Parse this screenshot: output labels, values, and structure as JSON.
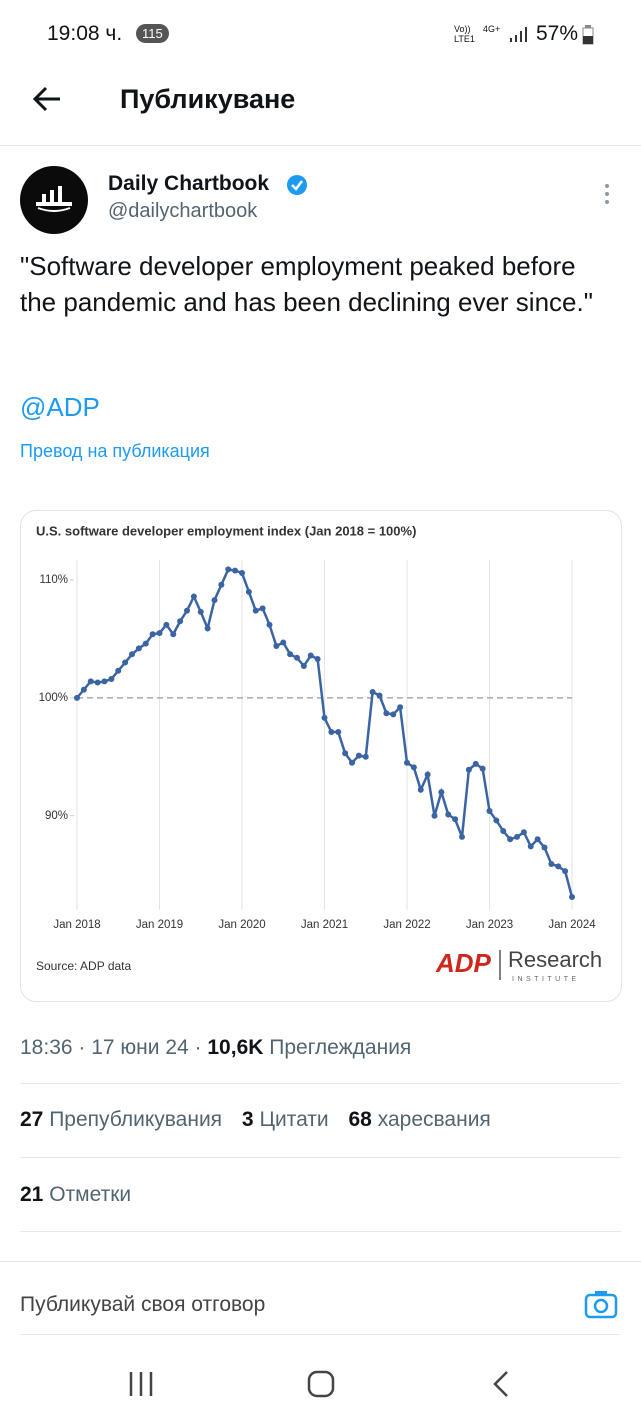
{
  "status_bar": {
    "time": "19:08 ч.",
    "badge": "115",
    "network": "Vo)) LTE1",
    "network_type": "4G+",
    "battery": "57%"
  },
  "header": {
    "title": "Публикуване"
  },
  "post": {
    "author": "Daily Chartbook",
    "handle": "@dailychartbook",
    "text": "\"Software developer employment peaked before the pandemic and has been declining ever since.\"",
    "mention": "@ADP",
    "translate": "Превод на публикация",
    "meta": {
      "time": "18:36",
      "date": "17 юни 24",
      "views": "10,6K",
      "views_label": "Преглеждания"
    },
    "stats": [
      {
        "count": "27",
        "label": "Препубликувания"
      },
      {
        "count": "3",
        "label": "Цитати"
      },
      {
        "count": "68",
        "label": "харесвания"
      }
    ],
    "bookmarks": {
      "count": "21",
      "label": "Отметки"
    }
  },
  "reply": {
    "placeholder": "Публикувай своя отговор"
  },
  "chart_data": {
    "type": "line",
    "title": "U.S. software developer employment index (Jan 2018 = 100%)",
    "source": "Source: ADP data",
    "logo": {
      "brand": "ADP",
      "name": "Research",
      "sub": "INSTITUTE"
    },
    "categories": [
      "Jan 2018",
      null,
      null,
      null,
      null,
      null,
      null,
      null,
      null,
      null,
      null,
      null,
      "Jan 2019",
      null,
      null,
      null,
      null,
      null,
      null,
      null,
      null,
      null,
      null,
      null,
      "Jan 2020",
      null,
      null,
      null,
      null,
      null,
      null,
      null,
      null,
      null,
      null,
      null,
      "Jan 2021",
      null,
      null,
      null,
      null,
      null,
      null,
      null,
      null,
      null,
      null,
      null,
      "Jan 2022",
      null,
      null,
      null,
      null,
      null,
      null,
      null,
      null,
      null,
      null,
      null,
      "Jan 2023",
      null,
      null,
      null,
      null,
      null,
      null,
      null,
      null,
      null,
      null,
      null,
      "Jan 2024"
    ],
    "series": [
      {
        "name": "Software developer employment index",
        "color": "#3b64a3",
        "values": [
          100,
          100.7,
          101.4,
          101.3,
          101.4,
          101.6,
          102.3,
          103.0,
          103.7,
          104.2,
          104.6,
          105.4,
          105.5,
          106.2,
          105.4,
          106.5,
          107.4,
          108.6,
          107.3,
          105.9,
          108.3,
          109.6,
          110.9,
          110.8,
          110.6,
          109.0,
          107.4,
          107.6,
          106.2,
          104.4,
          104.7,
          103.7,
          103.4,
          102.7,
          103.6,
          103.3,
          98.3,
          97.1,
          97.1,
          95.3,
          94.5,
          95.1,
          95.0,
          100.5,
          100.2,
          98.7,
          98.6,
          99.2,
          94.5,
          94.1,
          92.2,
          93.5,
          90.0,
          92.0,
          90.1,
          89.7,
          88.2,
          93.9,
          94.4,
          94.0,
          90.4,
          89.6,
          88.7,
          88.0,
          88.2,
          88.6,
          87.4,
          88.0,
          87.3,
          85.9,
          85.7,
          85.3,
          83.1
        ]
      }
    ],
    "reference_line": 100,
    "ylim": [
      82,
      111.7
    ],
    "yticks": [
      {
        "value": 90,
        "label": "90%"
      },
      {
        "value": 100,
        "label": "100%"
      },
      {
        "value": 110,
        "label": "110%"
      }
    ],
    "grid": true
  }
}
